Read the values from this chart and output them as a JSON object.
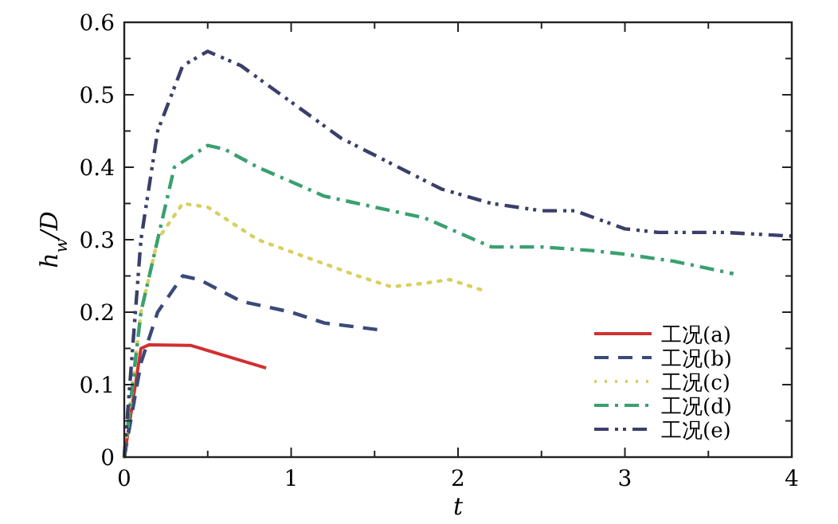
{
  "chart_data": {
    "type": "line",
    "xlabel": "t",
    "ylabel": "h$_{w}$/D",
    "xlim": [
      0,
      4
    ],
    "ylim": [
      0,
      0.6
    ],
    "xticks": [
      0,
      {
        "value": 0.5,
        "label": null
      },
      1,
      {
        "value": 1.5,
        "label": null
      },
      2,
      {
        "value": 2.5,
        "label": null
      },
      3,
      {
        "value": 3.5,
        "label": null
      },
      4
    ],
    "yticks": [
      0,
      {
        "value": 0.05,
        "label": null
      },
      0.1,
      {
        "value": 0.15,
        "label": null
      },
      0.2,
      {
        "value": 0.25,
        "label": null
      },
      0.3,
      {
        "value": 0.35,
        "label": null
      },
      0.4,
      {
        "value": 0.45,
        "label": null
      },
      0.5,
      {
        "value": 0.55,
        "label": null
      },
      0.6
    ],
    "legend": "bottom right",
    "series": [
      {
        "name": "工况(a)",
        "color": "#d03030",
        "line_style": "solid",
        "x": [
          0,
          0.1,
          0.15,
          0.4,
          0.85
        ],
        "values": [
          0,
          0.15,
          0.155,
          0.154,
          0.123
        ]
      },
      {
        "name": "工况(b)",
        "color": "#3a4a7a",
        "line_style": "dashed",
        "x": [
          0,
          0.1,
          0.2,
          0.35,
          0.45,
          0.7,
          1.0,
          1.2,
          1.55
        ],
        "values": [
          0,
          0.13,
          0.2,
          0.25,
          0.245,
          0.215,
          0.2,
          0.185,
          0.175
        ]
      },
      {
        "name": "工况(c)",
        "color": "#d8d060",
        "line_style": "dotted",
        "x": [
          0,
          0.1,
          0.2,
          0.35,
          0.5,
          0.8,
          1.1,
          1.4,
          1.6,
          1.8,
          1.95,
          2.15
        ],
        "values": [
          0,
          0.2,
          0.3,
          0.35,
          0.345,
          0.3,
          0.275,
          0.25,
          0.235,
          0.24,
          0.245,
          0.23
        ]
      },
      {
        "name": "工况(d)",
        "color": "#3aa070",
        "line_style": "dashdot",
        "x": [
          0,
          0.1,
          0.3,
          0.5,
          0.6,
          0.8,
          1.2,
          1.5,
          1.8,
          2.0,
          2.2,
          2.5,
          2.8,
          3.0,
          3.3,
          3.65
        ],
        "values": [
          0,
          0.2,
          0.4,
          0.43,
          0.425,
          0.4,
          0.36,
          0.345,
          0.33,
          0.31,
          0.29,
          0.29,
          0.285,
          0.28,
          0.27,
          0.253
        ]
      },
      {
        "name": "工况(e)",
        "color": "#3a3f6a",
        "line_style": "dashdotdot",
        "x": [
          0,
          0.1,
          0.2,
          0.35,
          0.5,
          0.7,
          1.0,
          1.3,
          1.6,
          1.9,
          2.2,
          2.5,
          2.7,
          3.0,
          3.2,
          3.6,
          4.0
        ],
        "values": [
          0,
          0.3,
          0.45,
          0.54,
          0.56,
          0.54,
          0.49,
          0.44,
          0.405,
          0.37,
          0.35,
          0.34,
          0.34,
          0.315,
          0.31,
          0.31,
          0.305
        ]
      }
    ]
  }
}
